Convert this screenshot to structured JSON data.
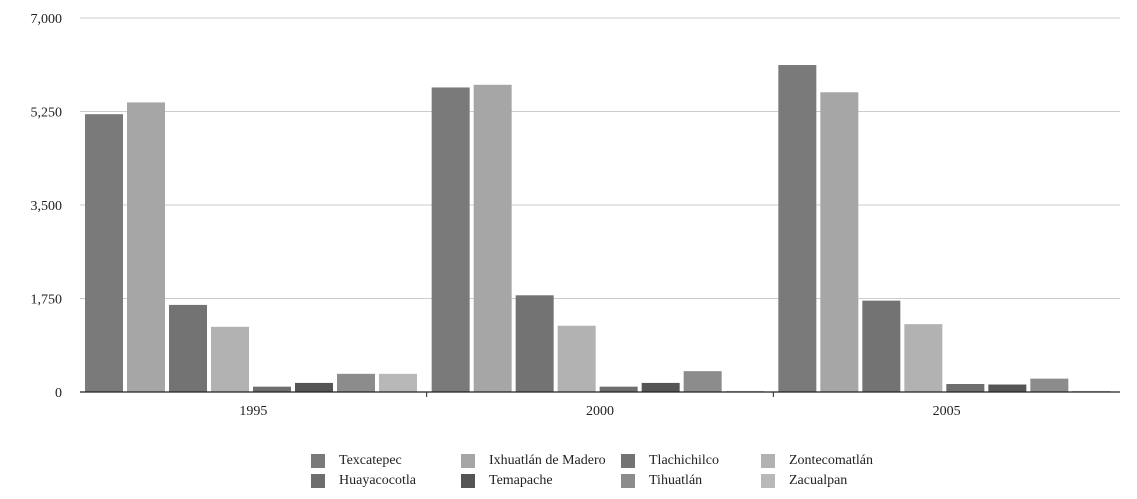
{
  "chart_data": {
    "type": "bar",
    "categories": [
      "1995",
      "2000",
      "2005"
    ],
    "ylim": [
      0,
      7000
    ],
    "yticks": [
      "0",
      "1,750",
      "3,500",
      "5,250",
      "7,000"
    ],
    "ytick_values": [
      0,
      1750,
      3500,
      5250,
      7000
    ],
    "grid": true,
    "legend_position": "bottom",
    "series": [
      {
        "name": "Texcatepec",
        "color": "#7a7a7a",
        "values": [
          5200,
          5700,
          6120
        ]
      },
      {
        "name": "Ixhuatlán de Madero",
        "color": "#a6a6a6",
        "values": [
          5420,
          5750,
          5610
        ]
      },
      {
        "name": "Tlachichilco",
        "color": "#737373",
        "values": [
          1630,
          1810,
          1710
        ]
      },
      {
        "name": "Zontecomatlán",
        "color": "#b2b2b2",
        "values": [
          1220,
          1240,
          1270
        ]
      },
      {
        "name": "Huayacocotla",
        "color": "#6e6e6e",
        "values": [
          100,
          100,
          150
        ]
      },
      {
        "name": "Temapache",
        "color": "#555555",
        "values": [
          170,
          170,
          140
        ]
      },
      {
        "name": "Tihuatlán",
        "color": "#8c8c8c",
        "values": [
          340,
          390,
          250
        ]
      },
      {
        "name": "Zacualpan",
        "color": "#b8b8b8",
        "values": [
          340,
          20,
          20
        ]
      }
    ]
  }
}
